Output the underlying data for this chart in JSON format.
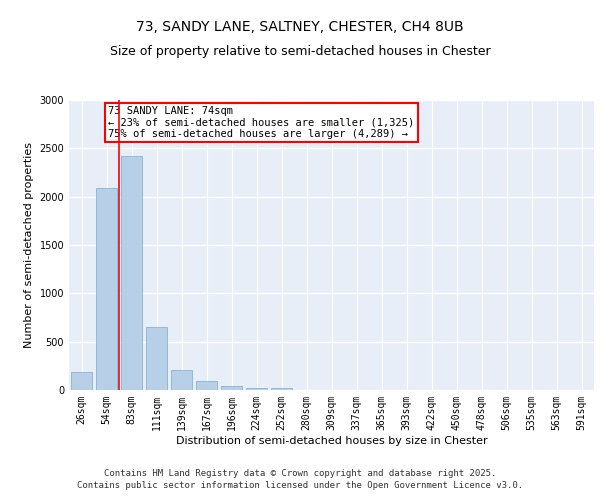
{
  "title_line1": "73, SANDY LANE, SALTNEY, CHESTER, CH4 8UB",
  "title_line2": "Size of property relative to semi-detached houses in Chester",
  "xlabel": "Distribution of semi-detached houses by size in Chester",
  "ylabel": "Number of semi-detached properties",
  "categories": [
    "26sqm",
    "54sqm",
    "83sqm",
    "111sqm",
    "139sqm",
    "167sqm",
    "196sqm",
    "224sqm",
    "252sqm",
    "280sqm",
    "309sqm",
    "337sqm",
    "365sqm",
    "393sqm",
    "422sqm",
    "450sqm",
    "478sqm",
    "506sqm",
    "535sqm",
    "563sqm",
    "591sqm"
  ],
  "values": [
    185,
    2090,
    2420,
    650,
    210,
    90,
    40,
    25,
    20,
    0,
    0,
    0,
    0,
    0,
    0,
    0,
    0,
    0,
    0,
    0,
    0
  ],
  "bar_color": "#b8cfe8",
  "bar_edgecolor": "#7aaad0",
  "vline_x": 1.5,
  "vline_color": "red",
  "annotation_title": "73 SANDY LANE: 74sqm",
  "annotation_line2": "← 23% of semi-detached houses are smaller (1,325)",
  "annotation_line3": "75% of semi-detached houses are larger (4,289) →",
  "annotation_box_color": "white",
  "annotation_box_edgecolor": "red",
  "ylim": [
    0,
    3000
  ],
  "yticks": [
    0,
    500,
    1000,
    1500,
    2000,
    2500,
    3000
  ],
  "background_color": "#e8eef7",
  "footer_line1": "Contains HM Land Registry data © Crown copyright and database right 2025.",
  "footer_line2": "Contains public sector information licensed under the Open Government Licence v3.0.",
  "grid_color": "white",
  "title_fontsize": 10,
  "subtitle_fontsize": 9,
  "axis_label_fontsize": 8,
  "tick_fontsize": 7,
  "annotation_fontsize": 7.5,
  "footer_fontsize": 6.5
}
